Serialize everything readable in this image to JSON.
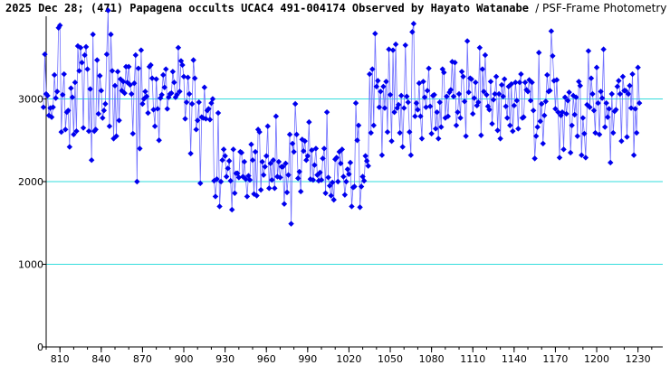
{
  "title": "2025 Dec 28; (471) Papagena occults UCAC4 491-004174 Observed by Hayato Watanabe",
  "subtitle": "/ PSF-Frame Photometry /",
  "chart_data": {
    "type": "line",
    "x_label": "",
    "y_label": "",
    "xlim": [
      800,
      1248
    ],
    "ylim": [
      0,
      4000
    ],
    "x_ticks": [
      810,
      840,
      870,
      900,
      930,
      960,
      990,
      1020,
      1050,
      1080,
      1110,
      1140,
      1170,
      1200,
      1230
    ],
    "y_ticks": [
      0,
      1000,
      2000,
      3000
    ],
    "y_tick_labels": [
      "0",
      "1000",
      "2000",
      "3000"
    ],
    "gridlines": "horizontal at 1000, 2000, 3000",
    "colors": {
      "series": "#0000ee",
      "grid": "#33dddd",
      "axis": "#000000"
    },
    "series": [
      {
        "x_start": 798,
        "x_step": 1,
        "y": [
          2900,
          3540,
          3060,
          3040,
          2800,
          2890,
          2780,
          2900,
          3290,
          3010,
          3090,
          3860,
          3890,
          2600,
          3050,
          3300,
          2630,
          2840,
          2860,
          2420,
          3130,
          3020,
          2570,
          3200,
          2610,
          3640,
          3340,
          3620,
          3440,
          2650,
          3530,
          3630,
          3360,
          2610,
          3120,
          2260,
          3780,
          2610,
          2630,
          3470,
          2820,
          3280,
          3100,
          2770,
          2860,
          2940,
          3540,
          4070,
          2670,
          3780,
          3340,
          2520,
          3160,
          2550,
          3330,
          2740,
          3240,
          3100,
          3210,
          3070,
          3390,
          3200,
          3390,
          3170,
          3060,
          2580,
          3190,
          3530,
          2000,
          3370,
          2400,
          3590,
          2940,
          3000,
          3090,
          3030,
          2830,
          3390,
          3410,
          3250,
          2870,
          2670,
          3240,
          2880,
          2500,
          3010,
          3050,
          3290,
          3140,
          3360,
          2880,
          3020,
          3060,
          3070,
          3330,
          3200,
          3020,
          3050,
          3620,
          3090,
          3460,
          3410,
          3270,
          2760,
          2960,
          3260,
          3060,
          2340,
          2940,
          3470,
          3250,
          2630,
          2740,
          2960,
          1980,
          2780,
          2770,
          3140,
          2760,
          2860,
          2880,
          2750,
          2950,
          3000,
          2010,
          1820,
          2030,
          2830,
          1700,
          2000,
          2260,
          2390,
          2310,
          2060,
          2160,
          2250,
          2010,
          1660,
          2390,
          1860,
          2100,
          2100,
          2050,
          2360,
          2350,
          2060,
          2240,
          2030,
          1820,
          2070,
          2020,
          2450,
          2260,
          1850,
          2360,
          1830,
          2630,
          2600,
          1900,
          2240,
          2080,
          2180,
          2310,
          2670,
          1920,
          2220,
          2020,
          2260,
          1920,
          2790,
          2060,
          2240,
          2050,
          2180,
          2180,
          1730,
          2220,
          1870,
          2080,
          2570,
          1490,
          2460,
          2360,
          2940,
          2570,
          2040,
          2120,
          1880,
          2510,
          2370,
          2490,
          2260,
          2310,
          2720,
          2030,
          2380,
          2020,
          2200,
          2400,
          2080,
          2010,
          2110,
          2020,
          2280,
          2400,
          1860,
          2840,
          2050,
          1950,
          1830,
          1990,
          1780,
          2270,
          2290,
          2000,
          2360,
          2220,
          2390,
          2060,
          1840,
          2000,
          2150,
          2090,
          2230,
          1700,
          1930,
          1940,
          2950,
          2500,
          2680,
          1690,
          1940,
          2060,
          2010,
          2310,
          2250,
          2190,
          3300,
          2590,
          3360,
          2680,
          3790,
          3150,
          3220,
          2900,
          3090,
          2320,
          3150,
          2890,
          3210,
          2600,
          3600,
          3050,
          2490,
          3590,
          2840,
          3660,
          2890,
          2930,
          2590,
          3040,
          2420,
          2890,
          3650,
          3030,
          2960,
          2600,
          2320,
          3810,
          3910,
          2790,
          2950,
          2870,
          3190,
          2790,
          2520,
          3210,
          3020,
          2900,
          3100,
          3370,
          2910,
          2580,
          3040,
          3050,
          2640,
          2840,
          2520,
          2960,
          2660,
          3360,
          3320,
          2770,
          3030,
          2790,
          3080,
          3110,
          3450,
          3030,
          3440,
          2680,
          2840,
          3060,
          2770,
          3330,
          3270,
          2970,
          2550,
          3700,
          3080,
          3250,
          3240,
          2820,
          3010,
          3200,
          2920,
          2960,
          3620,
          2560,
          3360,
          3090,
          3530,
          3050,
          2910,
          2870,
          3210,
          2700,
          2990,
          3060,
          3270,
          2620,
          3060,
          2520,
          3170,
          3030,
          3240,
          2910,
          2770,
          3150,
          2680,
          3180,
          2610,
          2920,
          3200,
          2980,
          2640,
          3200,
          3300,
          2770,
          2780,
          3200,
          3110,
          3090,
          3230,
          2980,
          3200,
          2860,
          2280,
          2550,
          2660,
          3560,
          2730,
          2940,
          2460,
          2800,
          2970,
          3290,
          3090,
          3100,
          3820,
          3520,
          3220,
          2880,
          3230,
          2840,
          2290,
          2800,
          2840,
          2390,
          3020,
          2820,
          2980,
          3080,
          2350,
          2680,
          3040,
          2810,
          3020,
          2550,
          3210,
          3160,
          2320,
          2770,
          2580,
          2290,
          2930,
          3580,
          2900,
          3250,
          3060,
          2860,
          2590,
          3380,
          2950,
          2570,
          3090,
          3010,
          3600,
          2660,
          2950,
          2780,
          2880,
          2230,
          3060,
          2590,
          2850,
          2870,
          3150,
          3220,
          3060,
          2490,
          3270,
          3100,
          3100,
          2540,
          3060,
          3160,
          2890,
          3300,
          2320,
          2880,
          2590,
          3380,
          2950
        ]
      }
    ]
  }
}
